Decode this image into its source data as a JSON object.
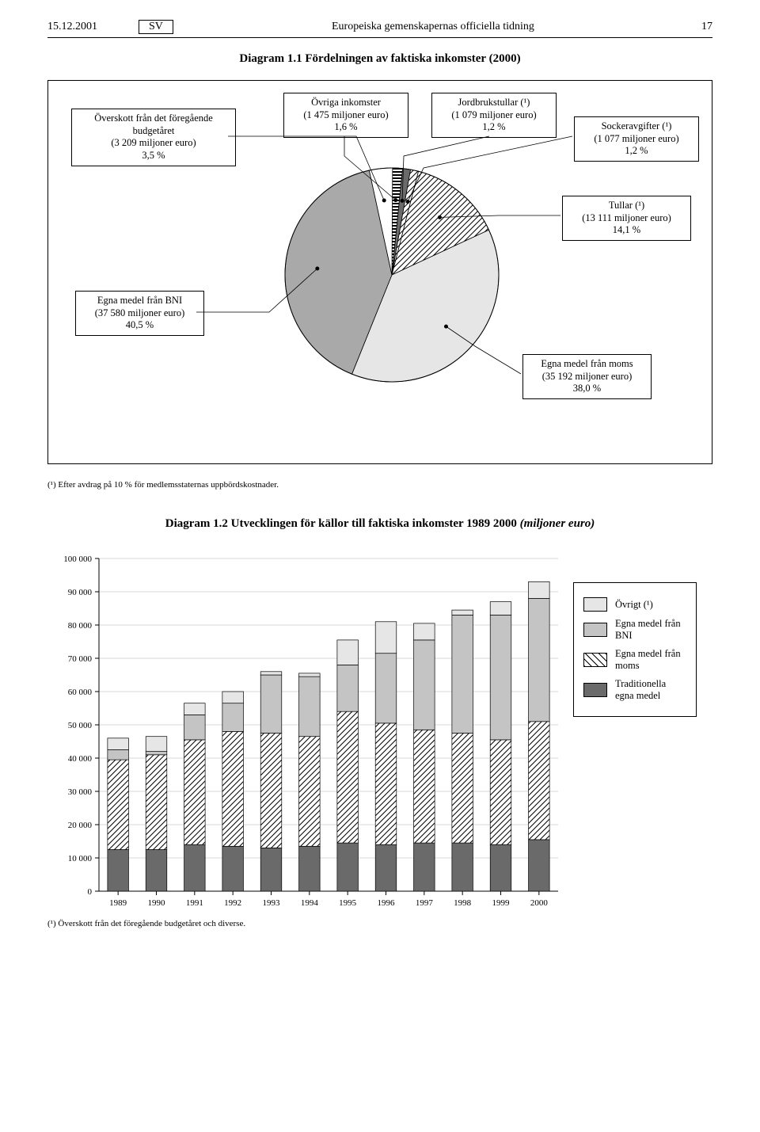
{
  "header": {
    "date": "15.12.2001",
    "lang": "SV",
    "journal": "Europeiska gemenskapernas officiella tidning",
    "pageno": "17"
  },
  "diagram1": {
    "title_prefix": "Diagram 1.1 ",
    "title_main": "Fördelningen av faktiska inkomster (2000)",
    "labels": {
      "surplus": {
        "l1": "Överskott från det föregående",
        "l2": "budgetåret",
        "l3": "(3 209 miljoner euro)",
        "l4": "3,5 %"
      },
      "other": {
        "l1": "Övriga inkomster",
        "l2": "(1 475 miljoner euro)",
        "l3": "1,6 %"
      },
      "agri": {
        "l1": "Jordbrukstullar (¹)",
        "l2": "(1 079 miljoner euro)",
        "l3": "1,2 %"
      },
      "sugar": {
        "l1": "Sockeravgifter (¹)",
        "l2": "(1 077 miljoner euro)",
        "l3": "1,2 %"
      },
      "customs": {
        "l1": "Tullar (¹)",
        "l2": "(13 111 miljoner euro)",
        "l3": "14,1 %"
      },
      "bni": {
        "l1": "Egna medel från BNI",
        "l2": "(37 580 miljoner euro)",
        "l3": "40,5 %"
      },
      "vat": {
        "l1": "Egna medel från moms",
        "l2": "(35 192 miljoner euro)",
        "l3": "38,0 %"
      }
    },
    "slices": [
      {
        "name": "other",
        "pct": 1.6,
        "fill": "hstripe"
      },
      {
        "name": "agri",
        "pct": 1.2,
        "fill": "#6a6a6a"
      },
      {
        "name": "sugar",
        "pct": 1.2,
        "fill": "diag"
      },
      {
        "name": "customs",
        "pct": 14.1,
        "fill": "diag"
      },
      {
        "name": "vat",
        "pct": 38.0,
        "fill": "#e6e6e6"
      },
      {
        "name": "bni",
        "pct": 40.5,
        "fill": "#a9a9a9"
      },
      {
        "name": "surplus",
        "pct": 3.5,
        "fill": "#ffffff"
      }
    ],
    "colors": {
      "hstripe_bg": "#ffffff",
      "hstripe_line": "#000000",
      "diag_bg": "#ffffff",
      "diag_line": "#000000"
    },
    "start_angle_deg": -90,
    "footnote": "(¹) Efter avdrag på 10 % för medlemsstaternas uppbördskostnader."
  },
  "diagram2": {
    "title_prefix": "Diagram 1.2 ",
    "title_main": "Utvecklingen för källor till faktiska inkomster 1989  2000 ",
    "title_italic": "(miljoner euro)",
    "ylim": [
      0,
      100000
    ],
    "ytick_step": 10000,
    "categories": [
      "1989",
      "1990",
      "1991",
      "1992",
      "1993",
      "1994",
      "1995",
      "1996",
      "1997",
      "1998",
      "1999",
      "2000"
    ],
    "series": [
      {
        "key": "trad",
        "label": "Traditionella egna medel",
        "fill": "#6a6a6a"
      },
      {
        "key": "moms",
        "label": "Egna medel från moms",
        "fill": "diag"
      },
      {
        "key": "bni",
        "label": "Egna medel från BNI",
        "fill": "#c4c4c4"
      },
      {
        "key": "ovrigt",
        "label": "Övrigt (¹)",
        "fill": "#e6e6e6"
      }
    ],
    "data": {
      "trad": [
        12500,
        12500,
        14000,
        13500,
        13000,
        13500,
        14500,
        14000,
        14500,
        14500,
        14000,
        15500
      ],
      "moms": [
        27000,
        28500,
        31500,
        34500,
        34500,
        33000,
        39500,
        36500,
        34000,
        33000,
        31500,
        35500
      ],
      "bni": [
        3000,
        1000,
        7500,
        8500,
        17500,
        18000,
        14000,
        21000,
        27000,
        35500,
        37500,
        37000
      ],
      "ovrigt": [
        3500,
        4500,
        3500,
        3500,
        1000,
        1000,
        7500,
        9500,
        5000,
        1500,
        4000,
        5000
      ]
    },
    "colors": {
      "grid": "#b0b0b0",
      "axis": "#000000",
      "background": "#ffffff"
    },
    "bar_width_ratio": 0.55,
    "footnote": "(¹) Överskott från det föregående budgetåret och diverse."
  },
  "legend": {
    "items": [
      {
        "key": "ovrigt",
        "label": "Övrigt (¹)"
      },
      {
        "key": "bni",
        "label": "Egna medel från BNI"
      },
      {
        "key": "moms",
        "label": "Egna medel från moms"
      },
      {
        "key": "trad",
        "label": "Traditionella egna medel"
      }
    ]
  }
}
